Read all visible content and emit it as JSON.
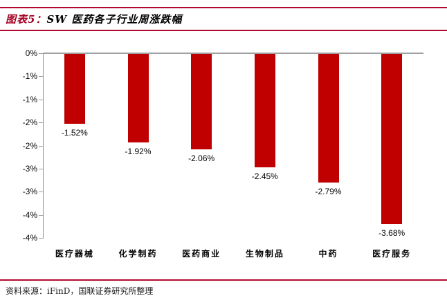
{
  "header": {
    "figure_label": "图表5：",
    "figure_title": "SW 医药各子行业周涨跌幅"
  },
  "footer": {
    "source_label": "资料来源：",
    "source_text": "iFinD，国联证券研究所整理"
  },
  "colors": {
    "bar": "#C00000",
    "rule": "#B1082F",
    "figure_label": "#A50021",
    "axis_line": "#999999",
    "baseline": "#A0A0A0"
  },
  "chart_data": {
    "type": "bar",
    "title": "SW 医药各子行业周涨跌幅",
    "categories": [
      "医疗器械",
      "化学制药",
      "医药商业",
      "生物制品",
      "中药",
      "医疗服务"
    ],
    "values": [
      -1.52,
      -1.92,
      -2.06,
      -2.45,
      -2.79,
      -3.68
    ],
    "data_labels": [
      "-1.52%",
      "-1.92%",
      "-2.06%",
      "-2.45%",
      "-2.79%",
      "-3.68%"
    ],
    "xlabel": "",
    "ylabel": "",
    "ylim": [
      -4,
      0
    ],
    "y_tick_interval": 0.5,
    "y_tick_labels": [
      "0%",
      "-1%",
      "-1%",
      "-2%",
      "-2%",
      "-3%",
      "-3%",
      "-4%",
      "-4%"
    ],
    "grid": false,
    "legend": false
  }
}
